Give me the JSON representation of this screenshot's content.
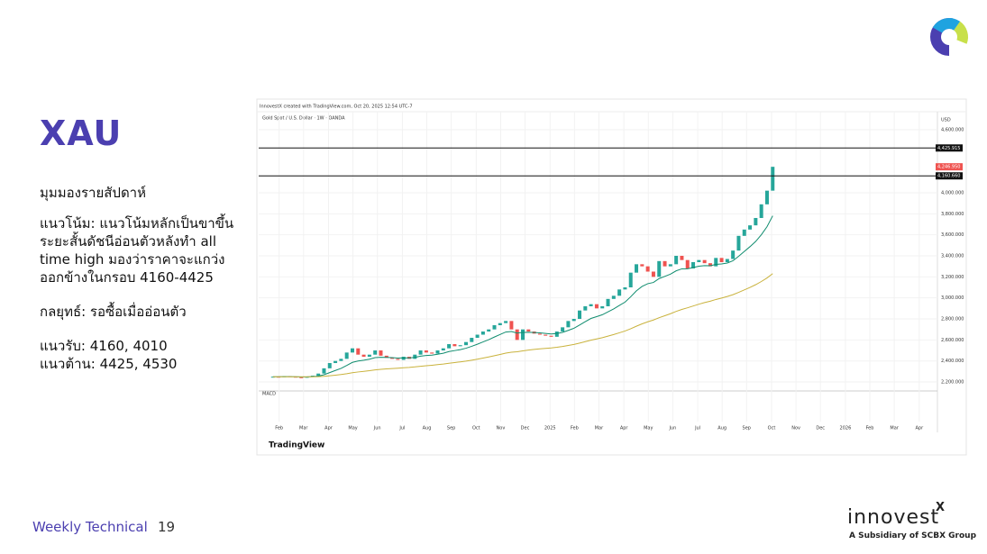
{
  "slide": {
    "title": "XAU",
    "heading": "มุมมองรายสัปดาห์",
    "trend": [
      "แนวโน้ม: แนวโน้มหลักเป็นขาขึ้น",
      "ระยะสั้นดัชนีอ่อนตัวหลังทำ all",
      "time high มองว่าราคาจะแกว่ง",
      "ออกข้างในกรอบ 4160-4425"
    ],
    "strategy": "กลยุทธ์: รอซื้อเมื่ออ่อนตัว",
    "support": "แนวรับ: 4160, 4010",
    "resistance": "แนวต้าน: 4425, 4530",
    "footer": "Weekly Technical",
    "page": "19",
    "brand": "innovest",
    "brand_mark": "X",
    "brand_sub": "A Subsidiary of SCBX Group"
  },
  "chart_data": {
    "type": "candlestick",
    "credit": "InnovestX created with TradingView.com, Oct 20, 2025 12:54 UTC-7",
    "title": "Gold Spot / U.S. Dollar · 1W · OANDA",
    "currency": "USD",
    "source": "TradingView",
    "macd_label": "MACD",
    "closes": [
      2250,
      2245,
      2255,
      2250,
      2245,
      2240,
      2250,
      2260,
      2280,
      2330,
      2380,
      2400,
      2420,
      2480,
      2520,
      2460,
      2440,
      2460,
      2500,
      2450,
      2430,
      2420,
      2410,
      2440,
      2420,
      2460,
      2500,
      2480,
      2470,
      2500,
      2520,
      2560,
      2540,
      2550,
      2580,
      2620,
      2650,
      2680,
      2700,
      2740,
      2760,
      2780,
      2700,
      2600,
      2700,
      2680,
      2660,
      2650,
      2640,
      2630,
      2680,
      2720,
      2780,
      2800,
      2880,
      2920,
      2940,
      2900,
      2920,
      2990,
      3020,
      3080,
      3100,
      3240,
      3320,
      3300,
      3250,
      3200,
      3350,
      3300,
      3320,
      3400,
      3360,
      3280,
      3340,
      3360,
      3330,
      3300,
      3380,
      3340,
      3370,
      3450,
      3590,
      3650,
      3690,
      3760,
      3890,
      4020,
      4246.95
    ],
    "up_color": "#26a69a",
    "down_color": "#ef5350",
    "last_price": {
      "value": 4246.95,
      "label": "4,246.950"
    },
    "levels": [
      {
        "value": 4425.915,
        "label": "4,425.915"
      },
      {
        "value": 4160.66,
        "label": "4,160.660"
      }
    ],
    "xlim": [
      -2.5,
      117
    ],
    "ylim": [
      2100,
      4700
    ],
    "yticks": [
      {
        "value": 2200,
        "label": "2,200.000"
      },
      {
        "value": 2400,
        "label": "2,400.000"
      },
      {
        "value": 2600,
        "label": "2,600.000"
      },
      {
        "value": 2800,
        "label": "2,800.000"
      },
      {
        "value": 3000,
        "label": "3,000.000"
      },
      {
        "value": 3200,
        "label": "3,200.000"
      },
      {
        "value": 3400,
        "label": "3,400.000"
      },
      {
        "value": 3600,
        "label": "3,600.000"
      },
      {
        "value": 3800,
        "label": "3,800.000"
      },
      {
        "value": 4000,
        "label": "4,000.000"
      },
      {
        "value": 4600,
        "label": "4,600.000"
      }
    ],
    "xticks": [
      {
        "value": 1.1,
        "label": "Feb"
      },
      {
        "value": 5.4,
        "label": "Mar"
      },
      {
        "value": 9.8,
        "label": "Apr"
      },
      {
        "value": 14.1,
        "label": "May"
      },
      {
        "value": 18.4,
        "label": "Jun"
      },
      {
        "value": 22.8,
        "label": "Jul"
      },
      {
        "value": 27.1,
        "label": "Aug"
      },
      {
        "value": 31.4,
        "label": "Sep"
      },
      {
        "value": 35.8,
        "label": "Oct"
      },
      {
        "value": 40.1,
        "label": "Nov"
      },
      {
        "value": 44.4,
        "label": "Dec"
      },
      {
        "value": 48.8,
        "label": "2025"
      },
      {
        "value": 53.1,
        "label": "Feb"
      },
      {
        "value": 57.4,
        "label": "Mar"
      },
      {
        "value": 61.8,
        "label": "Apr"
      },
      {
        "value": 66.1,
        "label": "May"
      },
      {
        "value": 70.4,
        "label": "Jun"
      },
      {
        "value": 74.8,
        "label": "Jul"
      },
      {
        "value": 79.1,
        "label": "Aug"
      },
      {
        "value": 83.4,
        "label": "Sep"
      },
      {
        "value": 87.8,
        "label": "Oct"
      },
      {
        "value": 92.1,
        "label": "Nov"
      },
      {
        "value": 96.4,
        "label": "Dec"
      },
      {
        "value": 100.8,
        "label": "2026"
      },
      {
        "value": 105.1,
        "label": "Feb"
      },
      {
        "value": 109.4,
        "label": "Mar"
      },
      {
        "value": 113.8,
        "label": "Apr"
      }
    ],
    "grid": true
  }
}
